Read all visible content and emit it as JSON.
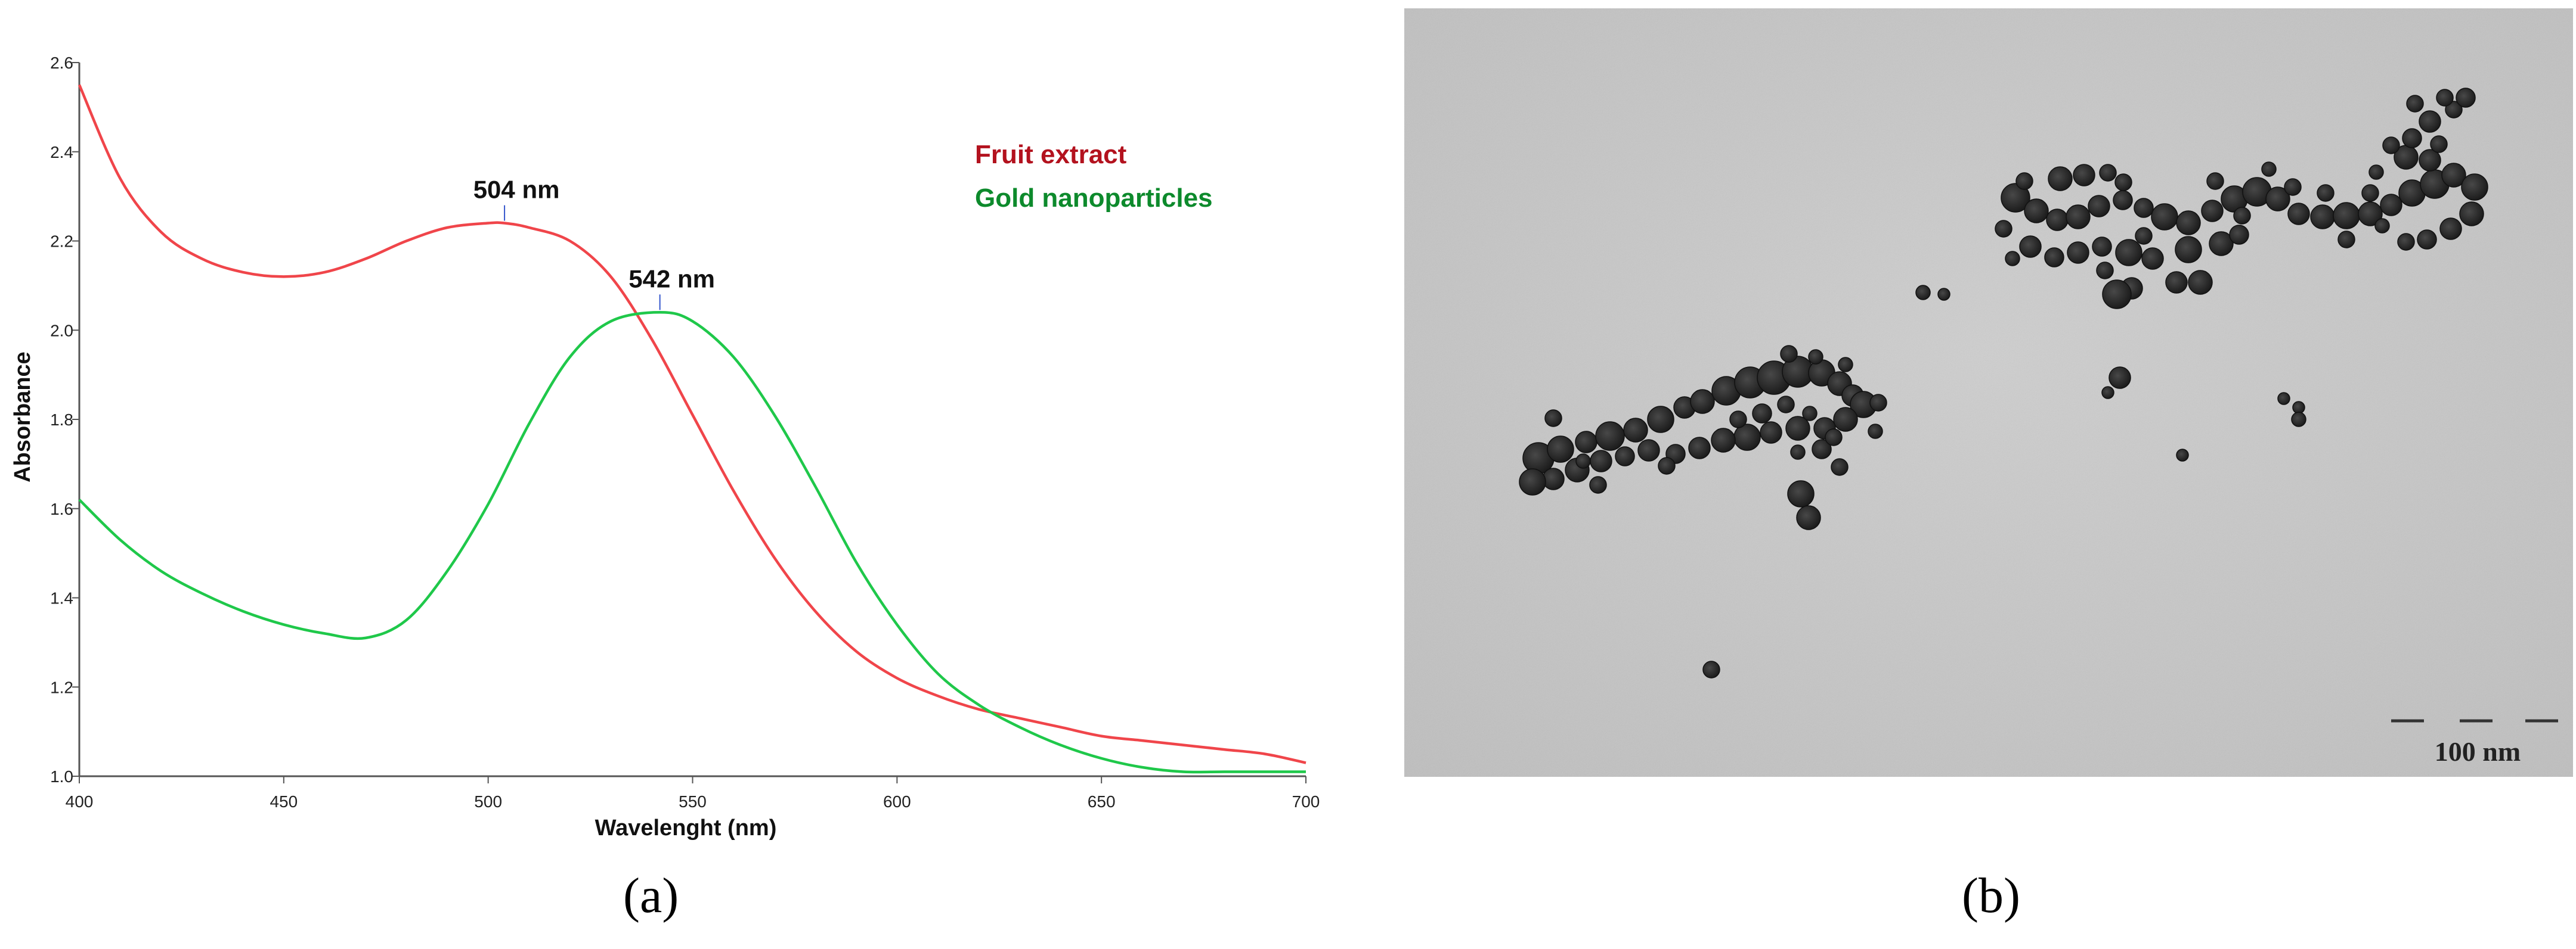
{
  "panel_a_label": "(a)",
  "panel_b_label": "(b)",
  "scale_bar_label": "100 nm",
  "colors": {
    "fruit_extract": "#f0454a",
    "gold_nanoparticles": "#1fc84a",
    "legend_fruit": "#b3121e",
    "legend_gold": "#0d8a2c",
    "tem_background": "#c9c9c9",
    "particle": "#2c2c2c"
  },
  "chart_data": {
    "type": "line",
    "xlabel": "Wavelenght (nm)",
    "ylabel": "Absorbance",
    "xlim": [
      400,
      700
    ],
    "ylim": [
      1.0,
      2.6
    ],
    "xticks": [
      400,
      450,
      500,
      550,
      600,
      650,
      700
    ],
    "yticks": [
      1.0,
      1.2,
      1.4,
      1.6,
      1.8,
      2.0,
      2.2,
      2.4,
      2.6
    ],
    "grid": false,
    "legend_position": "top-right",
    "series": [
      {
        "name": "Fruit extract",
        "color": "#f0454a",
        "x": [
          400,
          410,
          420,
          430,
          440,
          450,
          460,
          470,
          480,
          490,
          500,
          504,
          510,
          520,
          530,
          540,
          550,
          560,
          570,
          580,
          590,
          600,
          610,
          620,
          630,
          640,
          650,
          660,
          670,
          680,
          690,
          700
        ],
        "y": [
          2.55,
          2.34,
          2.22,
          2.16,
          2.13,
          2.12,
          2.13,
          2.16,
          2.2,
          2.23,
          2.24,
          2.24,
          2.23,
          2.2,
          2.12,
          1.98,
          1.81,
          1.64,
          1.49,
          1.37,
          1.28,
          1.22,
          1.18,
          1.15,
          1.13,
          1.11,
          1.09,
          1.08,
          1.07,
          1.06,
          1.05,
          1.03
        ]
      },
      {
        "name": "Gold nanoparticles",
        "color": "#1fc84a",
        "x": [
          400,
          410,
          420,
          430,
          440,
          450,
          460,
          470,
          480,
          490,
          500,
          510,
          520,
          530,
          542,
          550,
          560,
          570,
          580,
          590,
          600,
          610,
          620,
          630,
          640,
          650,
          660,
          670,
          680,
          690,
          700
        ],
        "y": [
          1.62,
          1.53,
          1.46,
          1.41,
          1.37,
          1.34,
          1.32,
          1.31,
          1.35,
          1.46,
          1.61,
          1.79,
          1.94,
          2.02,
          2.04,
          2.02,
          1.94,
          1.81,
          1.65,
          1.48,
          1.34,
          1.23,
          1.16,
          1.11,
          1.07,
          1.04,
          1.02,
          1.01,
          1.01,
          1.01,
          1.01
        ]
      }
    ],
    "annotations": [
      {
        "text": "504 nm",
        "x": 504,
        "y": 2.24
      },
      {
        "text": "542 nm",
        "x": 542,
        "y": 2.04
      }
    ]
  }
}
